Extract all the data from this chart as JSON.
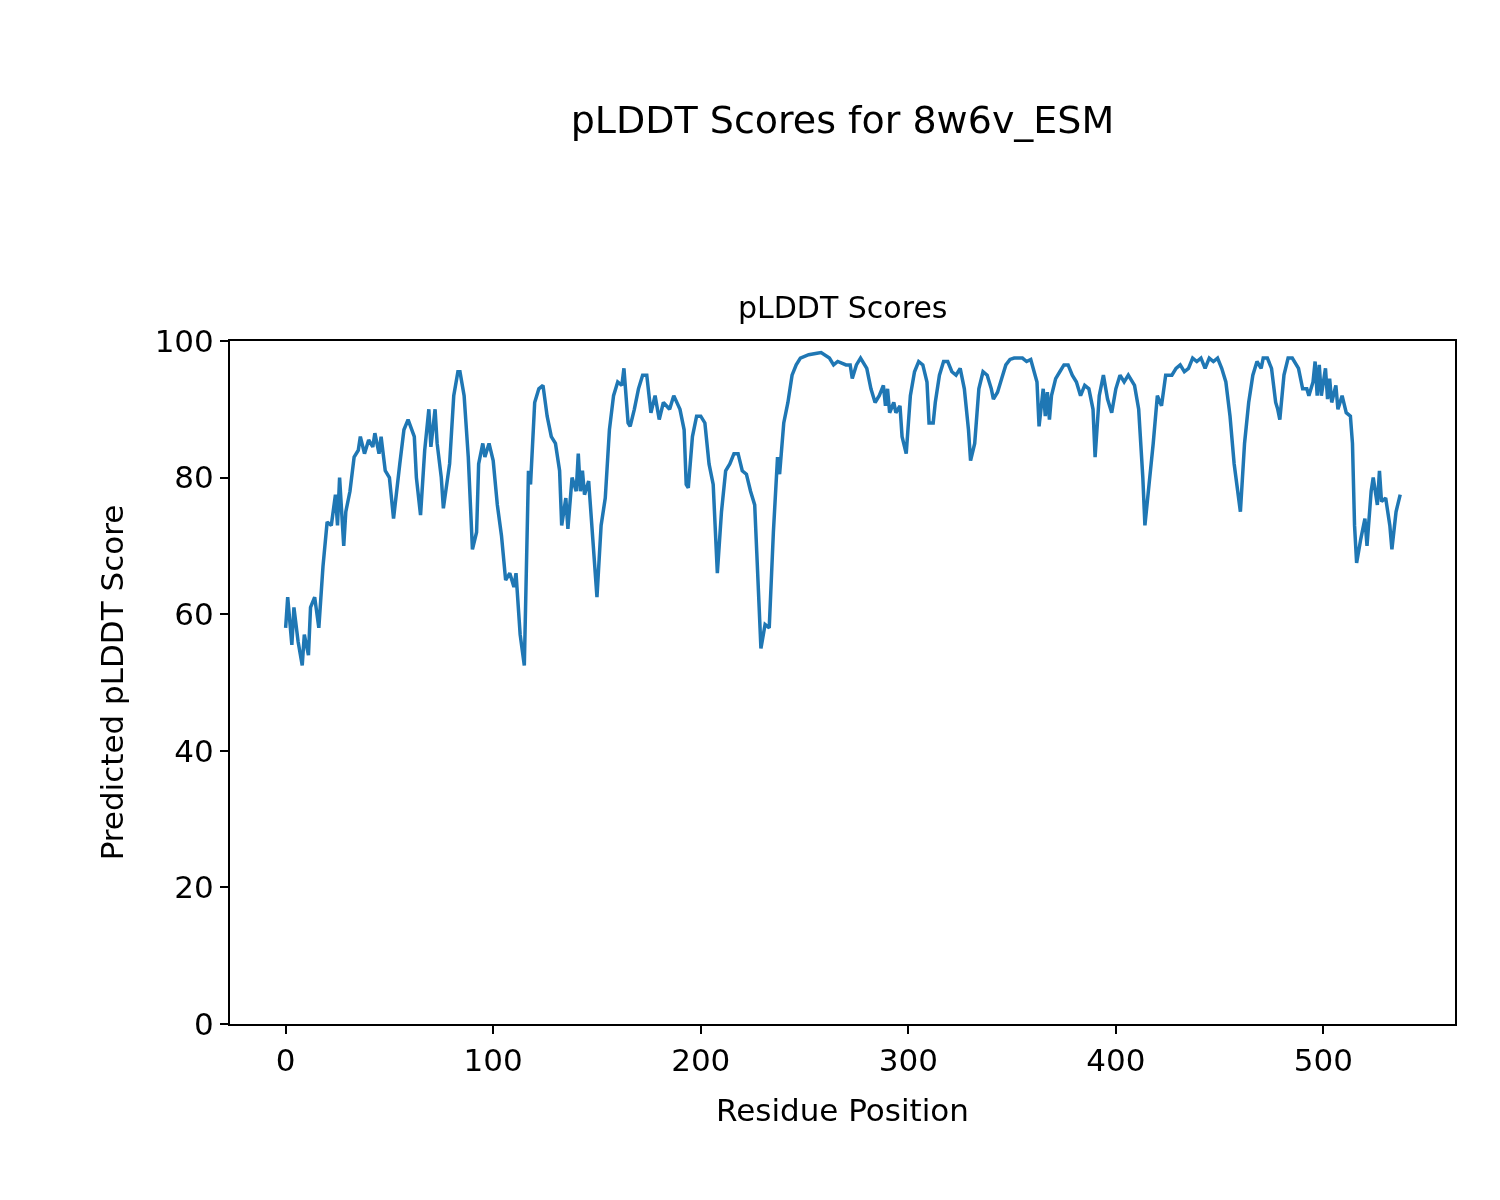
{
  "chart_data": {
    "type": "line",
    "title": "pLDDT Scores for 8w6v_ESM",
    "subtitle": "pLDDT Scores",
    "xlabel": "Residue Position",
    "ylabel": "Predicted pLDDT Score",
    "xlim": [
      -26.8,
      563.4
    ],
    "xticks": [
      0,
      100,
      200,
      300,
      400,
      500
    ],
    "ylim": [
      0,
      100
    ],
    "yticks": [
      0,
      20,
      40,
      60,
      80,
      100
    ],
    "grid": false,
    "marker": "none",
    "line_style": "solid",
    "series": [
      {
        "color": "#1f77b4",
        "x": [
          0,
          1,
          3,
          4,
          6,
          8,
          9,
          11,
          12,
          14,
          16,
          18,
          20,
          22,
          24,
          25,
          26,
          28,
          29,
          31,
          33,
          35,
          36,
          38,
          40,
          42,
          43,
          45,
          46,
          48,
          50,
          52,
          55,
          57,
          59,
          62,
          63,
          65,
          67,
          69,
          70,
          72,
          73,
          75,
          76,
          79,
          81,
          83,
          84,
          86,
          88,
          90,
          92,
          93,
          95,
          96,
          98,
          100,
          102,
          104,
          106,
          108,
          110,
          111,
          113,
          115,
          117,
          118,
          120,
          122,
          124,
          126,
          128,
          130,
          132,
          133,
          135,
          136,
          138,
          140,
          141,
          142,
          143,
          144,
          146,
          148,
          150,
          152,
          154,
          156,
          158,
          160,
          162,
          163,
          165,
          166,
          168,
          170,
          172,
          174,
          176,
          178,
          180,
          182,
          185,
          187,
          190,
          192,
          193,
          194,
          196,
          198,
          200,
          202,
          204,
          206,
          208,
          210,
          212,
          214,
          216,
          218,
          220,
          222,
          224,
          226,
          227,
          229,
          231,
          233,
          235,
          237,
          238,
          240,
          242,
          244,
          246,
          248,
          252,
          256,
          258,
          262,
          264,
          266,
          270,
          272,
          273,
          275,
          277,
          280,
          282,
          284,
          286,
          288,
          289,
          290,
          291,
          293,
          294,
          296,
          297,
          299,
          301,
          303,
          305,
          307,
          309,
          310,
          312,
          313,
          315,
          317,
          319,
          321,
          323,
          325,
          327,
          329,
          330,
          332,
          334,
          336,
          338,
          340,
          341,
          343,
          345,
          347,
          349,
          351,
          355,
          357,
          359,
          362,
          363,
          365,
          366,
          367,
          368,
          369,
          371,
          373,
          375,
          377,
          379,
          381,
          383,
          385,
          387,
          389,
          390,
          392,
          394,
          396,
          398,
          400,
          402,
          404,
          406,
          409,
          411,
          413,
          414,
          416,
          418,
          420,
          422,
          424,
          427,
          429,
          431,
          433,
          435,
          437,
          439,
          441,
          443,
          445,
          447,
          449,
          451,
          453,
          455,
          457,
          460,
          462,
          464,
          466,
          468,
          470,
          471,
          473,
          475,
          477,
          478,
          479,
          481,
          483,
          485,
          488,
          490,
          492,
          493,
          495,
          496,
          497,
          498,
          499,
          501,
          502,
          503,
          504,
          506,
          507,
          509,
          511,
          513,
          514,
          515,
          516,
          518,
          520,
          521,
          523,
          524,
          526,
          527,
          528,
          530,
          532,
          533,
          535,
          537
        ],
        "values": [
          58,
          62.5,
          55.5,
          61,
          56,
          52.5,
          57,
          54,
          61,
          62.5,
          58,
          67,
          73.5,
          73,
          77.5,
          73,
          80,
          70,
          75,
          78,
          83,
          84,
          86,
          83.5,
          85.5,
          84.5,
          86.5,
          83.5,
          86,
          81,
          80,
          74,
          82,
          87,
          88.5,
          86,
          80,
          74.5,
          84,
          90,
          84.5,
          90,
          85,
          80,
          75.5,
          82,
          92,
          95.5,
          95.5,
          92,
          83,
          69.5,
          72,
          82,
          85,
          83,
          85,
          82.5,
          76,
          71.5,
          65,
          66,
          64,
          66,
          57,
          52.5,
          81,
          79,
          91,
          93,
          93.5,
          89,
          86,
          85,
          81,
          73,
          77,
          72.5,
          80,
          78,
          83.5,
          78,
          81,
          77.5,
          79.5,
          71,
          62.5,
          73,
          77,
          87,
          92,
          94,
          93.5,
          96,
          88,
          87.5,
          90,
          93,
          95,
          95,
          89.5,
          92,
          88.5,
          91,
          90,
          92,
          90,
          87,
          79,
          78.5,
          86,
          89,
          89,
          88,
          82,
          79,
          66,
          75,
          81,
          82,
          83.5,
          83.5,
          81,
          80.5,
          78,
          76,
          69,
          55,
          58.5,
          58,
          72,
          83,
          80.5,
          88,
          91,
          95,
          96.5,
          97.5,
          98,
          98.2,
          98.3,
          97.5,
          96.5,
          97,
          96.5,
          96.5,
          94.5,
          96.5,
          97.5,
          96,
          93,
          91,
          92,
          93.5,
          90.5,
          93,
          89.5,
          91,
          89.5,
          90.5,
          86,
          83.5,
          92,
          95.5,
          97,
          96.5,
          94,
          88,
          88,
          91,
          95,
          97,
          97,
          95.5,
          95,
          96,
          93,
          87,
          82.5,
          85,
          93,
          95.5,
          95,
          93,
          91.5,
          92.5,
          94.5,
          96.5,
          97.3,
          97.5,
          97.5,
          97,
          97.3,
          94,
          87.5,
          93,
          89,
          92.5,
          88.5,
          92,
          94.5,
          95.5,
          96.5,
          96.5,
          95,
          94,
          92,
          93.5,
          93,
          90,
          83,
          92,
          95,
          91.5,
          89.5,
          93,
          95,
          94,
          95,
          93.5,
          90,
          80,
          73,
          79,
          85,
          92,
          90.5,
          95,
          95,
          96,
          96.5,
          95.5,
          96,
          97.5,
          97,
          97.5,
          96,
          97.5,
          97,
          97.5,
          96,
          94,
          89,
          82,
          75,
          85,
          91,
          95,
          97,
          96,
          97.5,
          97.5,
          96,
          91,
          90,
          88.5,
          95,
          97.5,
          97.5,
          96,
          93,
          93,
          92,
          94,
          97,
          92,
          96.5,
          92,
          96,
          91.5,
          94.5,
          91,
          93.5,
          90,
          92,
          89.5,
          89,
          85,
          73,
          67.5,
          71,
          74,
          70,
          78,
          80,
          76,
          81,
          76.5,
          77,
          73,
          69.5,
          75,
          77.5
        ]
      }
    ]
  }
}
